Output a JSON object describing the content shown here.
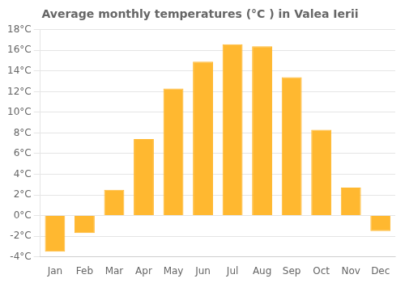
{
  "chart_data": {
    "type": "bar",
    "title": "Average monthly temperatures (°C ) in Valea Ierii",
    "categories": [
      "Jan",
      "Feb",
      "Mar",
      "Apr",
      "May",
      "Jun",
      "Jul",
      "Aug",
      "Sep",
      "Oct",
      "Nov",
      "Dec"
    ],
    "values": [
      -3.5,
      -1.7,
      2.5,
      7.4,
      12.3,
      14.9,
      16.6,
      16.4,
      13.4,
      8.3,
      2.7,
      -1.5
    ],
    "color": "#FFB830",
    "ylim": [
      -4,
      18
    ],
    "yticks": [
      {
        "value": -4,
        "label": "-4°C"
      },
      {
        "value": -2,
        "label": "-2°C"
      },
      {
        "value": 0,
        "label": "0°C"
      },
      {
        "value": 2,
        "label": "2°C"
      },
      {
        "value": 4,
        "label": "4°C"
      },
      {
        "value": 6,
        "label": "6°C"
      },
      {
        "value": 8,
        "label": "8°C"
      },
      {
        "value": 10,
        "label": "10°C"
      },
      {
        "value": 12,
        "label": "12°C"
      },
      {
        "value": 14,
        "label": "14°C"
      },
      {
        "value": 16,
        "label": "16°C"
      },
      {
        "value": 18,
        "label": "18°C"
      }
    ],
    "grid": true
  }
}
